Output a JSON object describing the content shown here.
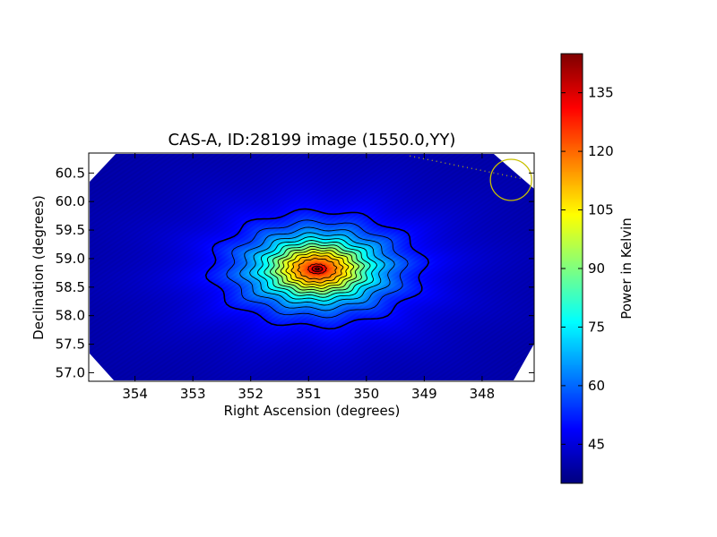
{
  "chart_data": {
    "type": "heatmap",
    "title": "CAS-A, ID:28199 image (1550.0,YY)",
    "xlabel": "Right Ascension (degrees)",
    "ylabel": "Declination (degrees)",
    "colorbar_label": "Power in Kelvin",
    "colormap": "jet",
    "x_inverted": true,
    "xlim": [
      354.8,
      347.1
    ],
    "ylim": [
      56.85,
      60.85
    ],
    "xticks": [
      354,
      353,
      352,
      351,
      350,
      349,
      348
    ],
    "yticks": [
      57.0,
      57.5,
      58.0,
      58.5,
      59.0,
      59.5,
      60.0,
      60.5
    ],
    "xtick_labels": [
      "354",
      "353",
      "352",
      "351",
      "350",
      "349",
      "348"
    ],
    "ytick_labels": [
      "57.0",
      "57.5",
      "58.0",
      "58.5",
      "59.0",
      "59.5",
      "60.0",
      "60.5"
    ],
    "colorbar_range": [
      35,
      145
    ],
    "colorbar_ticks": [
      45,
      60,
      75,
      90,
      105,
      120,
      135
    ],
    "colorbar_tick_labels": [
      "45",
      "60",
      "75",
      "90",
      "105",
      "120",
      "135"
    ],
    "background_level": 38,
    "peak": {
      "ra": 350.85,
      "dec": 58.82,
      "value": 142
    },
    "contour_levels": [
      52,
      58,
      64,
      70,
      76,
      82,
      88,
      94,
      100,
      106,
      112,
      118,
      124,
      130,
      136,
      141
    ],
    "beam_marker": {
      "ra": 347.5,
      "dec": 60.38,
      "color": "#c8c000"
    },
    "beam_track": {
      "from": {
        "ra": 349.25,
        "dec": 60.8
      },
      "to": {
        "ra": 347.3,
        "dec": 60.4
      }
    }
  },
  "colors": {
    "contour": "#000000",
    "marker": "#c8c000",
    "track": "#c8c000"
  }
}
